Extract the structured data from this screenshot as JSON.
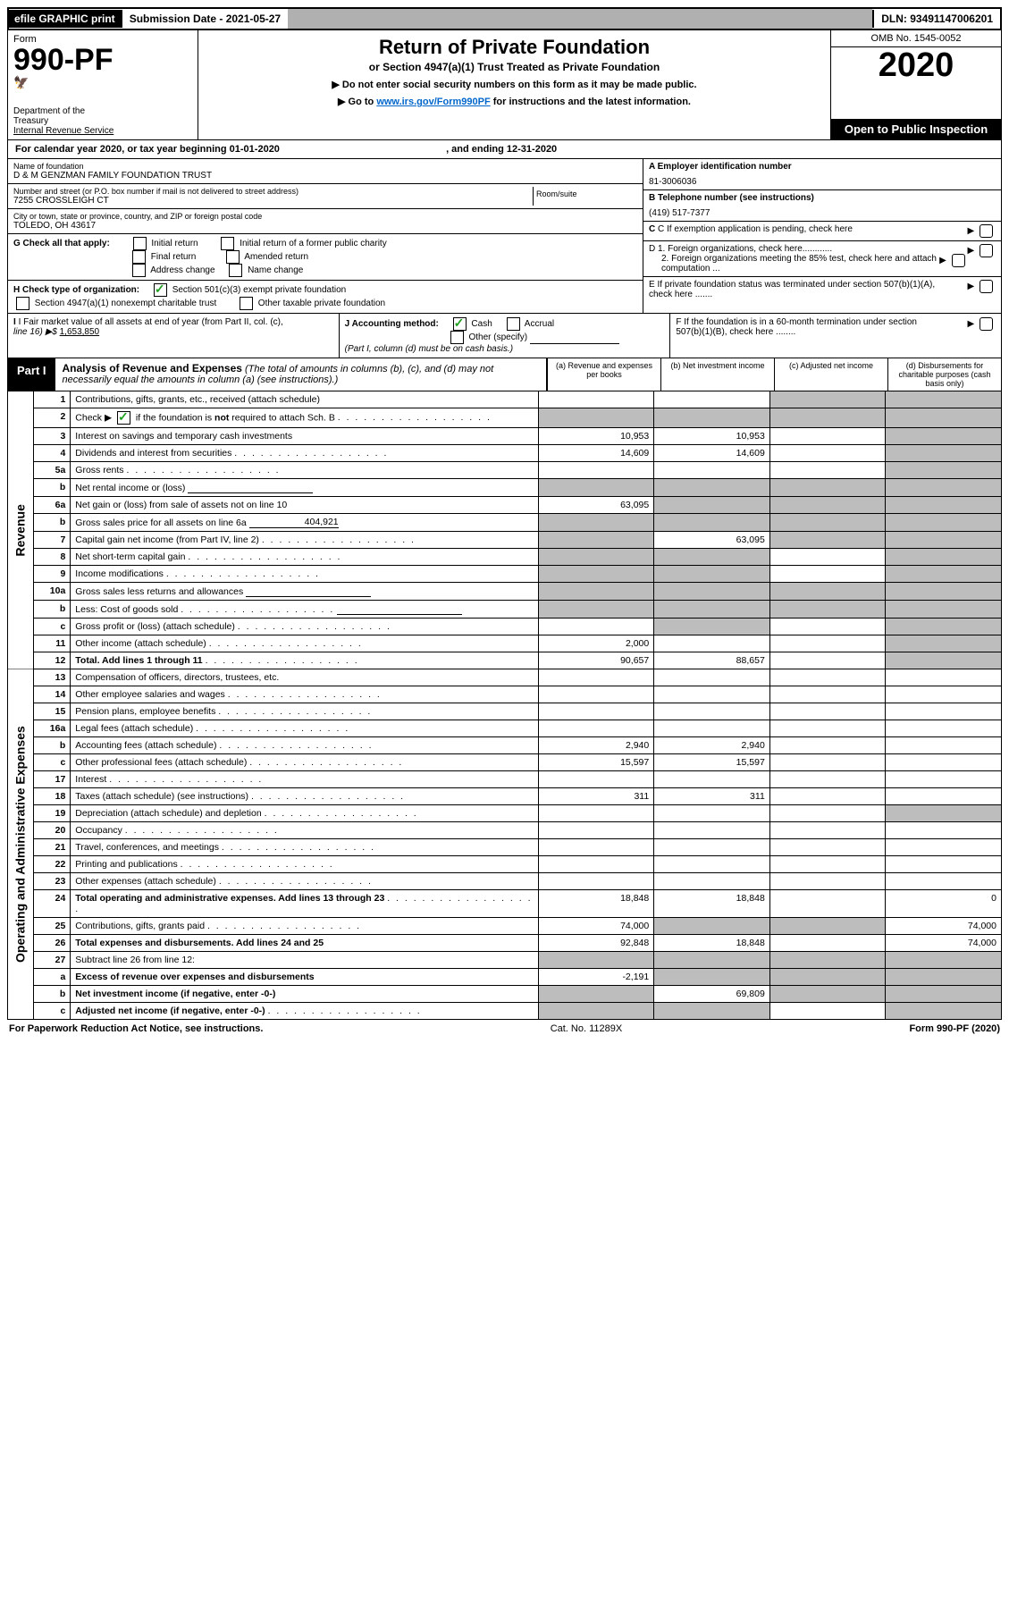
{
  "topbar": {
    "efile": "efile GRAPHIC print",
    "submission": "Submission Date - 2021-05-27",
    "dln": "DLN: 93491147006201"
  },
  "header": {
    "form_label": "Form",
    "form_number": "990-PF",
    "dept1": "Department of the",
    "dept2": "Treasury",
    "dept3": "Internal Revenue Service",
    "title": "Return of Private Foundation",
    "subtitle": "or Section 4947(a)(1) Trust Treated as Private Foundation",
    "note1": "▶ Do not enter social security numbers on this form as it may be made public.",
    "note2_pre": "▶ Go to ",
    "note2_link": "www.irs.gov/Form990PF",
    "note2_post": " for instructions and the latest information.",
    "omb": "OMB No. 1545-0052",
    "year": "2020",
    "open": "Open to Public Inspection"
  },
  "calendar": {
    "prefix": "For calendar year 2020, or tax year beginning ",
    "begin": "01-01-2020",
    "mid": " , and ending ",
    "end": "12-31-2020"
  },
  "entity": {
    "name_label": "Name of foundation",
    "name": "D & M GENZMAN FAMILY FOUNDATION TRUST",
    "addr_label": "Number and street (or P.O. box number if mail is not delivered to street address)",
    "room_label": "Room/suite",
    "addr": "7255 CROSSLEIGH CT",
    "city_label": "City or town, state or province, country, and ZIP or foreign postal code",
    "city": "TOLEDO, OH  43617",
    "ein_label": "A Employer identification number",
    "ein": "81-3006036",
    "phone_label": "B Telephone number (see instructions)",
    "phone": "(419) 517-7377",
    "c_label": "C If exemption application is pending, check here",
    "d1": "D 1. Foreign organizations, check here............",
    "d2": "2. Foreign organizations meeting the 85% test, check here and attach computation ...",
    "e": "E  If private foundation status was terminated under section 507(b)(1)(A), check here .......",
    "f": "F  If the foundation is in a 60-month termination under section 507(b)(1)(B), check here ........"
  },
  "g": {
    "label": "G Check all that apply:",
    "opts": [
      "Initial return",
      "Final return",
      "Address change",
      "Initial return of a former public charity",
      "Amended return",
      "Name change"
    ]
  },
  "h": {
    "label": "H Check type of organization:",
    "a": "Section 501(c)(3) exempt private foundation",
    "b": "Section 4947(a)(1) nonexempt charitable trust",
    "c": "Other taxable private foundation"
  },
  "i": {
    "label": "I Fair market value of all assets at end of year (from Part II, col. (c),",
    "line16": "line 16) ▶$  ",
    "value": "1,653,850"
  },
  "j": {
    "label": "J Accounting method:",
    "cash": "Cash",
    "accrual": "Accrual",
    "other": "Other (specify)",
    "note": "(Part I, column (d) must be on cash basis.)"
  },
  "part1": {
    "label": "Part I",
    "title": "Analysis of Revenue and Expenses",
    "paren": " (The total of amounts in columns (b), (c), and (d) may not necessarily equal the amounts in column (a) (see instructions).)",
    "col_a": "(a)    Revenue and expenses per books",
    "col_b": "(b)   Net investment income",
    "col_c": "(c)   Adjusted net income",
    "col_d": "(d)   Disbursements for charitable purposes (cash basis only)"
  },
  "side": {
    "revenue": "Revenue",
    "expenses": "Operating and Administrative Expenses"
  },
  "rows": [
    {
      "n": "1",
      "d": "Contributions, gifts, grants, etc., received (attach schedule)",
      "a": "",
      "b": "",
      "c_sh": true,
      "d_sh": true
    },
    {
      "n": "2",
      "d": "Check ▶ [CHK] if the foundation is not required to attach Sch. B",
      "a_sh": true,
      "b_sh": true,
      "c_sh": true,
      "d_sh": true,
      "checked": true,
      "bold_not": true
    },
    {
      "n": "3",
      "d": "Interest on savings and temporary cash investments",
      "a": "10,953",
      "b": "10,953",
      "c": "",
      "d_sh": true
    },
    {
      "n": "4",
      "d": "Dividends and interest from securities",
      "a": "14,609",
      "b": "14,609",
      "c": "",
      "d_sh": true,
      "dots": true
    },
    {
      "n": "5a",
      "d": "Gross rents",
      "a": "",
      "b": "",
      "c": "",
      "d_sh": true,
      "dots": true
    },
    {
      "n": "b",
      "d": "Net rental income or (loss)",
      "inline_blank": true,
      "a_sh": true,
      "b_sh": true,
      "c_sh": true,
      "d_sh": true
    },
    {
      "n": "6a",
      "d": "Net gain or (loss) from sale of assets not on line 10",
      "a": "63,095",
      "b_sh": true,
      "c_sh": true,
      "d_sh": true
    },
    {
      "n": "b",
      "d": "Gross sales price for all assets on line 6a",
      "inline_val": "404,921",
      "a_sh": true,
      "b_sh": true,
      "c_sh": true,
      "d_sh": true
    },
    {
      "n": "7",
      "d": "Capital gain net income (from Part IV, line 2)",
      "a_sh": true,
      "b": "63,095",
      "c_sh": true,
      "d_sh": true,
      "dots": true
    },
    {
      "n": "8",
      "d": "Net short-term capital gain",
      "a_sh": true,
      "b_sh": true,
      "c": "",
      "d_sh": true,
      "dots": true
    },
    {
      "n": "9",
      "d": "Income modifications",
      "a_sh": true,
      "b_sh": true,
      "c": "",
      "d_sh": true,
      "dots": true
    },
    {
      "n": "10a",
      "d": "Gross sales less returns and allowances",
      "inline_blank": true,
      "a_sh": true,
      "b_sh": true,
      "c_sh": true,
      "d_sh": true
    },
    {
      "n": "b",
      "d": "Less: Cost of goods sold",
      "inline_blank": true,
      "a_sh": true,
      "b_sh": true,
      "c_sh": true,
      "d_sh": true,
      "dots": true
    },
    {
      "n": "c",
      "d": "Gross profit or (loss) (attach schedule)",
      "a": "",
      "b_sh": true,
      "c": "",
      "d_sh": true,
      "dots": true
    },
    {
      "n": "11",
      "d": "Other income (attach schedule)",
      "a": "2,000",
      "b": "",
      "c": "",
      "d_sh": true,
      "dots": true
    },
    {
      "n": "12",
      "d": "Total. Add lines 1 through 11",
      "a": "90,657",
      "b": "88,657",
      "c": "",
      "d_sh": true,
      "dots": true,
      "bold": true
    }
  ],
  "exp_rows": [
    {
      "n": "13",
      "d": "Compensation of officers, directors, trustees, etc.",
      "a": "",
      "b": "",
      "c": "",
      "ddd": ""
    },
    {
      "n": "14",
      "d": "Other employee salaries and wages",
      "a": "",
      "b": "",
      "c": "",
      "ddd": "",
      "dots": true
    },
    {
      "n": "15",
      "d": "Pension plans, employee benefits",
      "a": "",
      "b": "",
      "c": "",
      "ddd": "",
      "dots": true
    },
    {
      "n": "16a",
      "d": "Legal fees (attach schedule)",
      "a": "",
      "b": "",
      "c": "",
      "ddd": "",
      "dots": true
    },
    {
      "n": "b",
      "d": "Accounting fees (attach schedule)",
      "a": "2,940",
      "b": "2,940",
      "c": "",
      "ddd": "",
      "dots": true
    },
    {
      "n": "c",
      "d": "Other professional fees (attach schedule)",
      "a": "15,597",
      "b": "15,597",
      "c": "",
      "ddd": "",
      "dots": true
    },
    {
      "n": "17",
      "d": "Interest",
      "a": "",
      "b": "",
      "c": "",
      "ddd": "",
      "dots": true
    },
    {
      "n": "18",
      "d": "Taxes (attach schedule) (see instructions)",
      "a": "311",
      "b": "311",
      "c": "",
      "ddd": "",
      "dots": true
    },
    {
      "n": "19",
      "d": "Depreciation (attach schedule) and depletion",
      "a": "",
      "b": "",
      "c": "",
      "d_sh": true,
      "dots": true
    },
    {
      "n": "20",
      "d": "Occupancy",
      "a": "",
      "b": "",
      "c": "",
      "ddd": "",
      "dots": true
    },
    {
      "n": "21",
      "d": "Travel, conferences, and meetings",
      "a": "",
      "b": "",
      "c": "",
      "ddd": "",
      "dots": true
    },
    {
      "n": "22",
      "d": "Printing and publications",
      "a": "",
      "b": "",
      "c": "",
      "ddd": "",
      "dots": true
    },
    {
      "n": "23",
      "d": "Other expenses (attach schedule)",
      "a": "",
      "b": "",
      "c": "",
      "ddd": "",
      "dots": true
    },
    {
      "n": "24",
      "d": "Total operating and administrative expenses. Add lines 13 through 23",
      "a": "18,848",
      "b": "18,848",
      "c": "",
      "ddd": "0",
      "dots": true,
      "bold": true
    },
    {
      "n": "25",
      "d": "Contributions, gifts, grants paid",
      "a": "74,000",
      "b_sh": true,
      "c_sh": true,
      "ddd": "74,000",
      "dots": true
    },
    {
      "n": "26",
      "d": "Total expenses and disbursements. Add lines 24 and 25",
      "a": "92,848",
      "b": "18,848",
      "c": "",
      "ddd": "74,000",
      "bold": true
    },
    {
      "n": "27",
      "d": "Subtract line 26 from line 12:",
      "a_sh": true,
      "b_sh": true,
      "c_sh": true,
      "d_sh": true
    },
    {
      "n": "a",
      "d": "Excess of revenue over expenses and disbursements",
      "a": "-2,191",
      "b_sh": true,
      "c_sh": true,
      "d_sh": true,
      "bold": true
    },
    {
      "n": "b",
      "d": "Net investment income (if negative, enter -0-)",
      "a_sh": true,
      "b": "69,809",
      "c_sh": true,
      "d_sh": true,
      "bold": true
    },
    {
      "n": "c",
      "d": "Adjusted net income (if negative, enter -0-)",
      "a_sh": true,
      "b_sh": true,
      "c": "",
      "d_sh": true,
      "dots": true,
      "bold": true
    }
  ],
  "footer": {
    "left": "For Paperwork Reduction Act Notice, see instructions.",
    "mid": "Cat. No. 11289X",
    "right": "Form 990-PF (2020)"
  }
}
